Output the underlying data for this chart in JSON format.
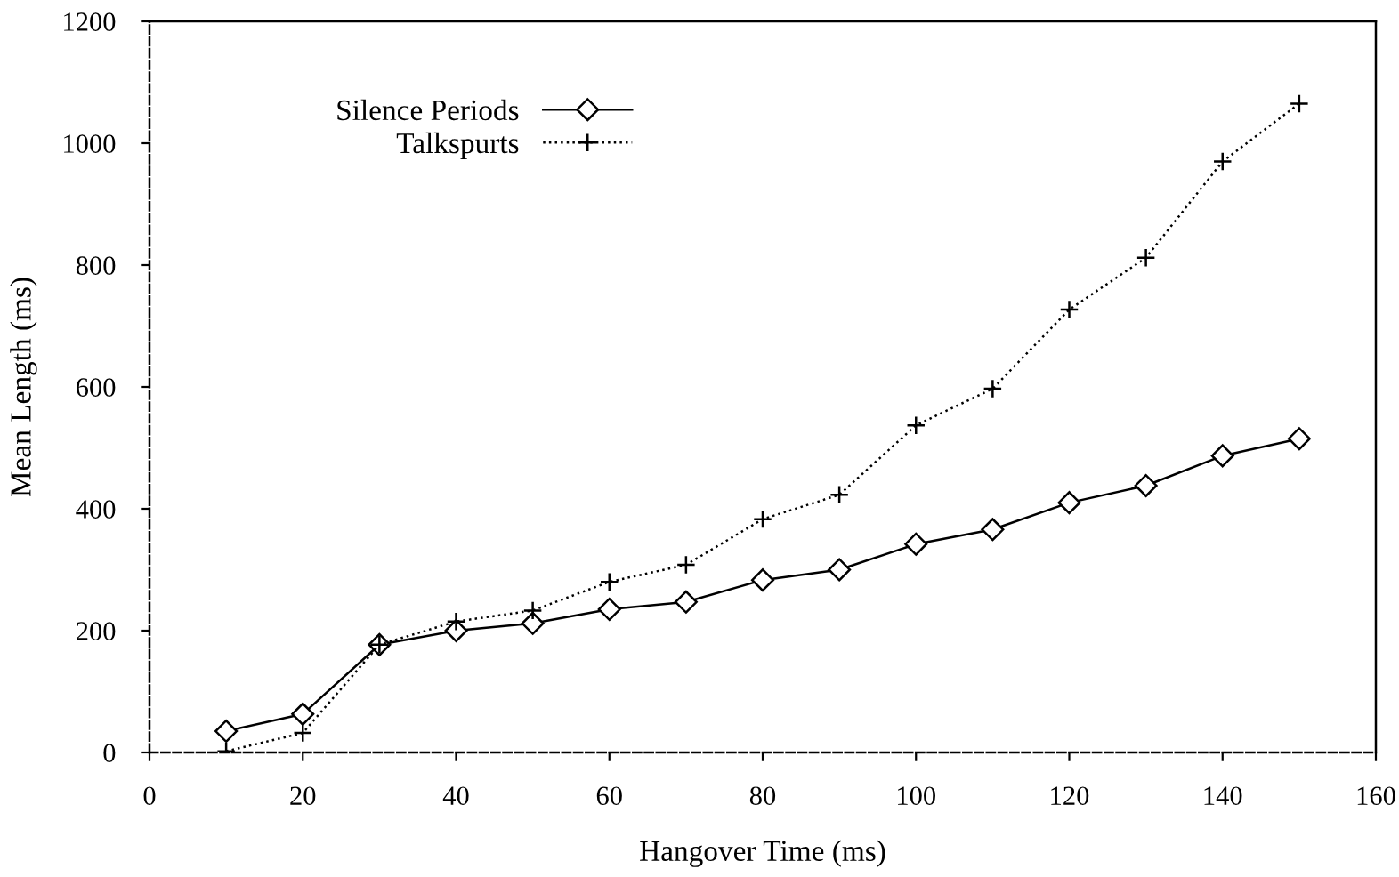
{
  "chart_data": {
    "type": "line",
    "xlabel": "Hangover Time (ms)",
    "ylabel": "Mean Length (ms)",
    "x": [
      10,
      20,
      30,
      40,
      50,
      60,
      70,
      80,
      90,
      100,
      110,
      120,
      130,
      140,
      150
    ],
    "series": [
      {
        "name": "Silence Periods",
        "color": "#000000",
        "marker": "diamond",
        "line_style": "solid",
        "values": [
          35,
          63,
          177,
          200,
          212,
          235,
          247,
          283,
          300,
          342,
          366,
          410,
          438,
          487,
          515
        ]
      },
      {
        "name": "Talkspurts",
        "color": "#000000",
        "marker": "cross",
        "line_style": "dotted",
        "values": [
          2,
          32,
          177,
          215,
          233,
          280,
          308,
          383,
          423,
          537,
          597,
          727,
          812,
          970,
          1065
        ]
      }
    ],
    "xlim": [
      0,
      160
    ],
    "ylim": [
      0,
      1200
    ],
    "xticks": [
      0,
      20,
      40,
      60,
      80,
      100,
      120,
      140,
      160
    ],
    "yticks": [
      0,
      200,
      400,
      600,
      800,
      1000,
      1200
    ],
    "grid": false,
    "legend": "top left"
  }
}
